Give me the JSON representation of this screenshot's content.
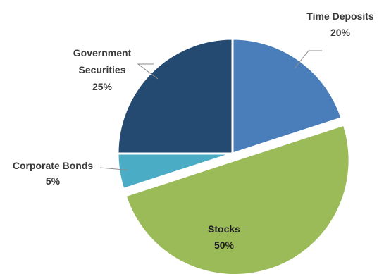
{
  "chart_data": {
    "type": "pie",
    "title": "",
    "slices": [
      {
        "label_lines": [
          "Time Deposits"
        ],
        "value": 20,
        "value_text": "20%",
        "color": "#4a7ebb"
      },
      {
        "label_lines": [
          "Stocks"
        ],
        "value": 50,
        "value_text": "50%",
        "color": "#9bbb59"
      },
      {
        "label_lines": [
          "Corporate Bonds"
        ],
        "value": 5,
        "value_text": "5%",
        "color": "#4bacc6"
      },
      {
        "label_lines": [
          "Government",
          "Securities"
        ],
        "value": 25,
        "value_text": "25%",
        "color": "#254a72"
      }
    ],
    "start_angle_deg": 0,
    "direction": "clockwise",
    "exploded_slice": "Stocks",
    "legend": "none"
  }
}
